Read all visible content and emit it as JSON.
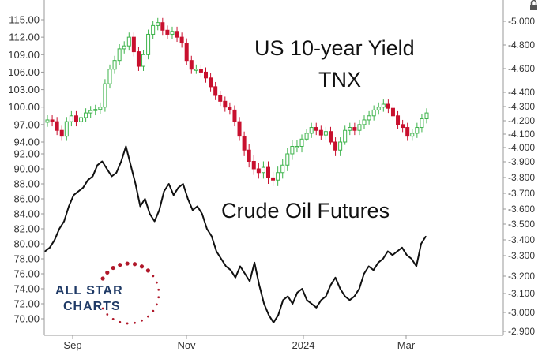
{
  "chart_data": {
    "type": "line",
    "x_ticks": [
      "Sep",
      "Nov",
      "2024",
      "Mar"
    ],
    "left_axis": {
      "ticks_upper": [
        "115.00",
        "112.00",
        "109.00",
        "106.00",
        "103.00",
        "100.00",
        "97.00",
        "94.00"
      ],
      "ticks_lower": [
        "92.00",
        "90.00",
        "88.00",
        "86.00",
        "84.00",
        "82.00",
        "80.00",
        "78.00",
        "76.00",
        "74.00",
        "72.00",
        "70.00"
      ]
    },
    "right_axis": {
      "ticks": [
        "5.000",
        "4.800",
        "4.600",
        "4.400",
        "4.300",
        "4.200",
        "4.100",
        "4.000",
        "3.900",
        "3.800",
        "3.700",
        "3.600",
        "3.500",
        "3.400",
        "3.300",
        "3.200",
        "3.100",
        "3.000",
        "2.900"
      ]
    },
    "annotations": [
      {
        "text": "US 10-year Yield"
      },
      {
        "text": "TNX"
      },
      {
        "text": "Crude Oil Futures"
      }
    ],
    "series": [
      {
        "label": "US 10-year Yield TNX",
        "style": "candlestick",
        "up_color": "#3cb34a",
        "down_color": "#c8102e",
        "y_values": [
          97.8,
          97.5,
          96.0,
          95.0,
          97.5,
          98.5,
          97.5,
          98.2,
          99.0,
          99.4,
          99.6,
          100.0,
          104.0,
          106.5,
          108.0,
          110.0,
          110.5,
          112.0,
          109.5,
          107.0,
          109.0,
          112.5,
          114.0,
          114.5,
          113.2,
          112.5,
          113.0,
          112.0,
          111.0,
          108.0,
          106.5,
          106.5,
          106.0,
          105.0,
          103.5,
          102.0,
          101.0,
          100.0,
          99.5,
          97.5,
          95.0,
          92.5,
          91.0,
          90.0,
          89.5,
          90.2,
          88.8,
          88.5,
          89.5,
          90.5,
          92.0,
          93.0,
          93.0,
          94.5,
          95.5,
          96.5,
          96.0,
          95.2,
          95.8,
          94.0,
          92.5,
          94.0,
          96.0,
          96.5,
          96.0,
          97.0,
          97.8,
          98.5,
          99.5,
          100.0,
          100.5,
          99.8,
          98.5,
          97.0,
          96.5,
          95.0,
          95.5,
          96.5,
          98.0,
          99.0
        ]
      },
      {
        "label": "Crude Oil Futures",
        "style": "line",
        "color": "#111111",
        "y_values": [
          79.0,
          79.5,
          80.5,
          82.0,
          83.0,
          85.0,
          86.5,
          87.0,
          87.5,
          88.5,
          89.0,
          90.5,
          91.0,
          90.0,
          89.0,
          89.5,
          91.0,
          93.0,
          90.5,
          88.0,
          85.0,
          86.0,
          84.0,
          83.0,
          84.5,
          87.0,
          88.0,
          86.5,
          87.5,
          88.0,
          86.0,
          84.5,
          85.0,
          84.0,
          82.0,
          81.0,
          79.0,
          78.0,
          77.0,
          76.5,
          75.5,
          77.0,
          76.0,
          75.0,
          77.5,
          74.5,
          72.0,
          70.5,
          69.5,
          70.5,
          72.5,
          73.0,
          72.0,
          73.5,
          74.0,
          72.5,
          72.0,
          71.5,
          72.5,
          73.0,
          74.5,
          75.5,
          74.0,
          73.0,
          72.5,
          73.0,
          74.0,
          76.0,
          77.0,
          76.5,
          77.5,
          78.0,
          79.0,
          78.5,
          79.0,
          79.5,
          78.5,
          78.0,
          77.0,
          80.0,
          81.0
        ]
      }
    ],
    "grid": false,
    "legend": "none"
  },
  "logo": {
    "line1": "ALL STAR",
    "line2": "CHARTS",
    "star_color": "#b0182a",
    "text_color": "#1f3a66"
  }
}
